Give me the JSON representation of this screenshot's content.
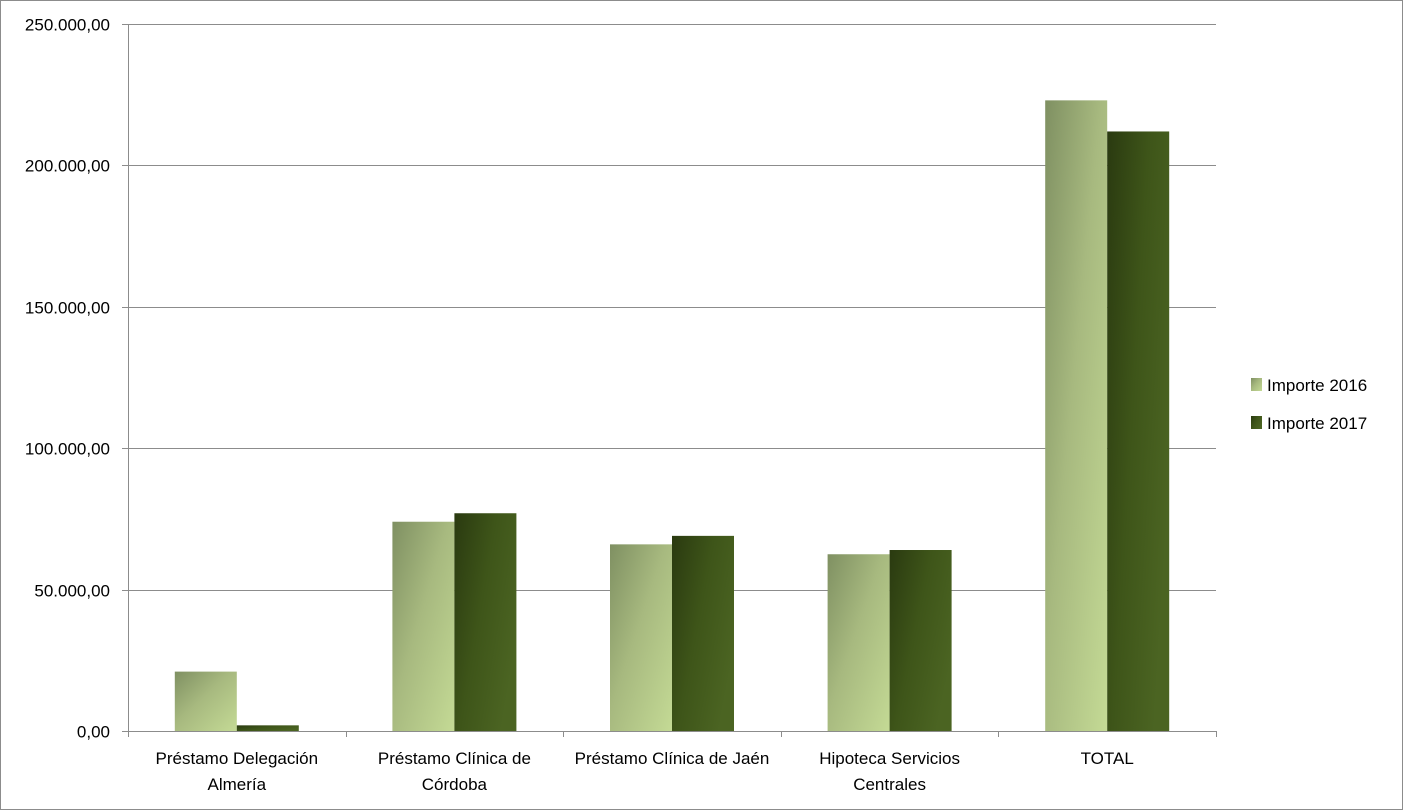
{
  "chart_data": {
    "type": "bar",
    "title": "",
    "xlabel": "",
    "ylabel": "",
    "ylim": [
      0,
      250000
    ],
    "yticks": [
      0,
      50000,
      100000,
      150000,
      200000,
      250000
    ],
    "ytick_labels": [
      "0,00",
      "50.000,00",
      "100.000,00",
      "150.000,00",
      "200.000,00",
      "250.000,00"
    ],
    "grid": true,
    "legend_position": "right",
    "categories": [
      [
        "Préstamo Delegación",
        "Almería"
      ],
      [
        "Préstamo Clínica de",
        "Córdoba"
      ],
      [
        "Préstamo Clínica de Jaén"
      ],
      [
        "Hipoteca Servicios",
        "Centrales"
      ],
      [
        "TOTAL"
      ]
    ],
    "series": [
      {
        "name": "Importe 2016",
        "color": "#9bb070",
        "values": [
          21000,
          74000,
          66000,
          62500,
          223000
        ]
      },
      {
        "name": "Importe 2017",
        "color": "#3d5218",
        "values": [
          2000,
          77000,
          69000,
          64000,
          212000
        ]
      }
    ]
  }
}
